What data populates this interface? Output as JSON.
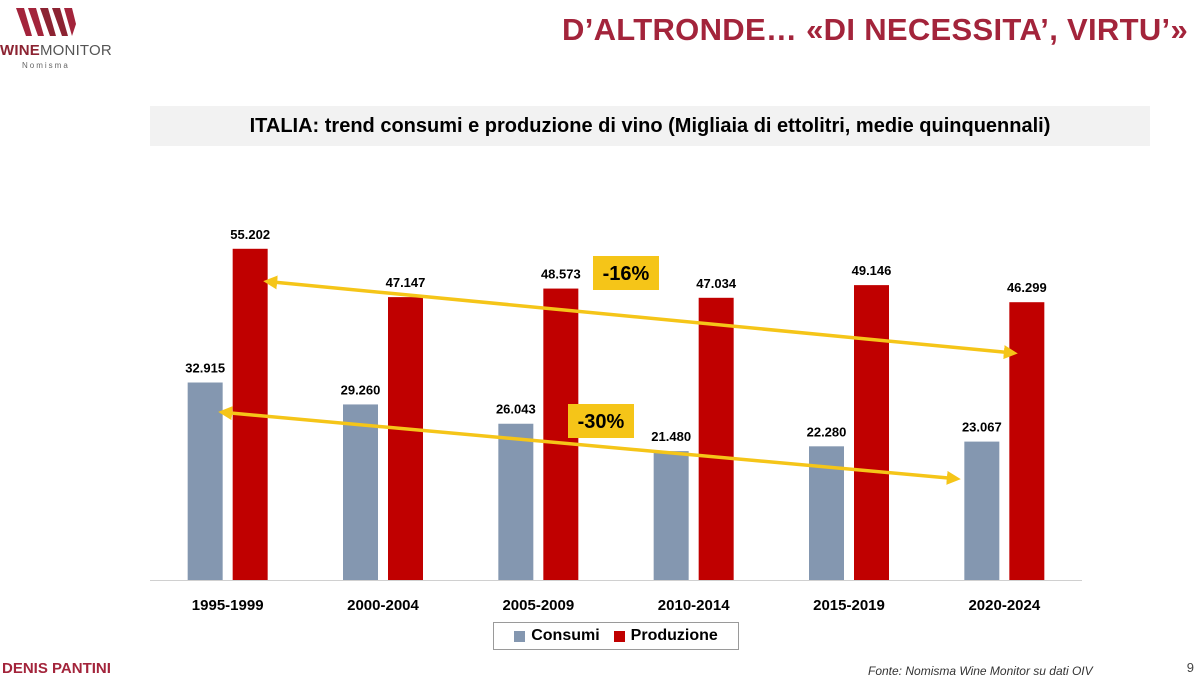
{
  "header": {
    "logo_brand_bold": "WINE",
    "logo_brand_rest": "MONITOR",
    "logo_sub": "Nomisma",
    "title": "D’ALTRONDE… «DI NECESSITA’, VIRTU’»"
  },
  "footer": {
    "author": "DENIS PANTINI",
    "source": "Fonte: Nomisma Wine Monitor su dati OIV",
    "page_number": "9"
  },
  "colors": {
    "consumi": "#8497b0",
    "produzione": "#c00000",
    "trend_arrow": "#f5c518",
    "badge": "#f5c518",
    "brand": "#a3243b"
  },
  "chart_data": {
    "type": "bar",
    "title": "ITALIA: trend consumi e produzione di vino (Migliaia di ettolitri, medie quinquennali)",
    "xlabel": "",
    "ylabel": "",
    "ylim": [
      0,
      60000
    ],
    "grid": false,
    "legend": "bottom",
    "categories": [
      "1995-1999",
      "2000-2004",
      "2005-2009",
      "2010-2014",
      "2015-2019",
      "2020-2024"
    ],
    "series": [
      {
        "name": "Consumi",
        "values": [
          32915,
          29260,
          26043,
          21480,
          22280,
          23067
        ],
        "labels": [
          "32.915",
          "29.260",
          "26.043",
          "21.480",
          "22.280",
          "23.067"
        ]
      },
      {
        "name": "Produzione",
        "values": [
          55202,
          47147,
          48573,
          47034,
          49146,
          46299
        ],
        "labels": [
          "55.202",
          "47.147",
          "48.573",
          "47.034",
          "49.146",
          "46.299"
        ]
      }
    ],
    "annotations": [
      {
        "text": "-16%",
        "series": "Produzione",
        "from": "1995-1999",
        "to": "2020-2024"
      },
      {
        "text": "-30%",
        "series": "Consumi",
        "from": "1995-1999",
        "to": "2020-2024"
      }
    ]
  }
}
